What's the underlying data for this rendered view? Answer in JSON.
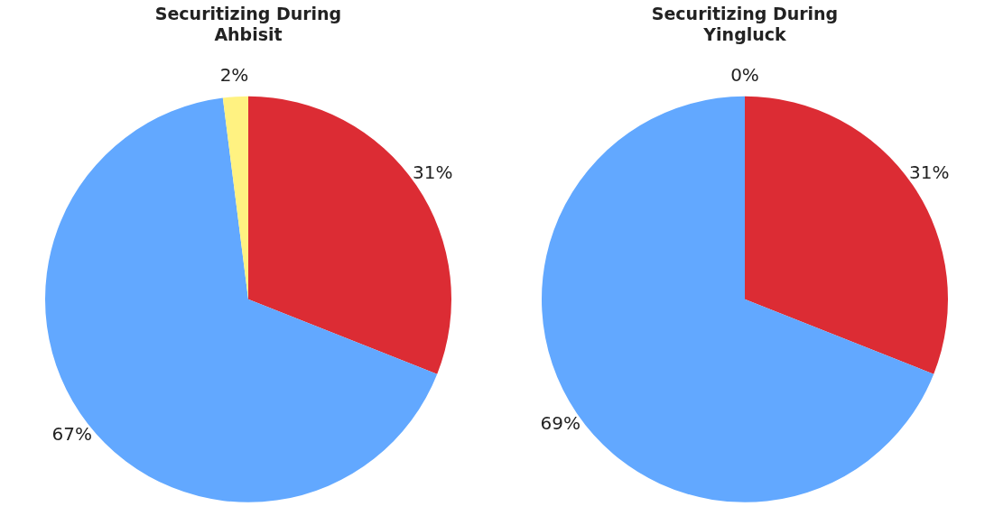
{
  "chart_data": [
    {
      "type": "pie",
      "title": "Securitizing During\nAhbisit",
      "categories": [
        null,
        null,
        null
      ],
      "values": [
        31,
        67,
        2
      ],
      "colors": [
        "#dc2c34",
        "#62a8ff",
        "#fff281"
      ],
      "value_labels": [
        "31%",
        "67%",
        "2%"
      ],
      "legend": false
    },
    {
      "type": "pie",
      "title": "Securitizing During\nYingluck",
      "categories": [
        null,
        null,
        null
      ],
      "values": [
        31,
        69,
        0
      ],
      "colors": [
        "#dc2c34",
        "#62a8ff",
        "#fff281"
      ],
      "value_labels": [
        "31%",
        "69%",
        "0%"
      ],
      "legend": false
    }
  ]
}
